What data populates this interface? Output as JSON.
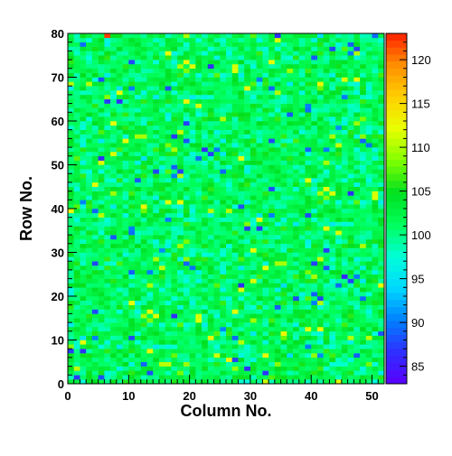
{
  "chart_data": {
    "type": "heatmap",
    "title": "",
    "xlabel": "Column No.",
    "ylabel": "Row No.",
    "xlim": [
      0,
      52
    ],
    "ylim": [
      0,
      80
    ],
    "x_bins": 52,
    "y_bins": 80,
    "x_ticks": [
      0,
      10,
      20,
      30,
      40,
      50
    ],
    "y_ticks": [
      0,
      10,
      20,
      30,
      40,
      50,
      60,
      70,
      80
    ],
    "z_range": [
      83,
      123
    ],
    "colorbar_ticks": [
      85,
      90,
      95,
      100,
      105,
      110,
      115,
      120
    ],
    "grid": false,
    "values_note": "cell values vary randomly around ~101 with sparse low (blue) and high (yellow/red) outliers"
  },
  "colors": {
    "palette_stops": [
      "#5a00ff",
      "#2f2fff",
      "#0080ff",
      "#00d8ff",
      "#00ffd8",
      "#00ff5a",
      "#00e020",
      "#80ff00",
      "#e8ff00",
      "#ffd000",
      "#ff9000",
      "#ff2000"
    ]
  }
}
